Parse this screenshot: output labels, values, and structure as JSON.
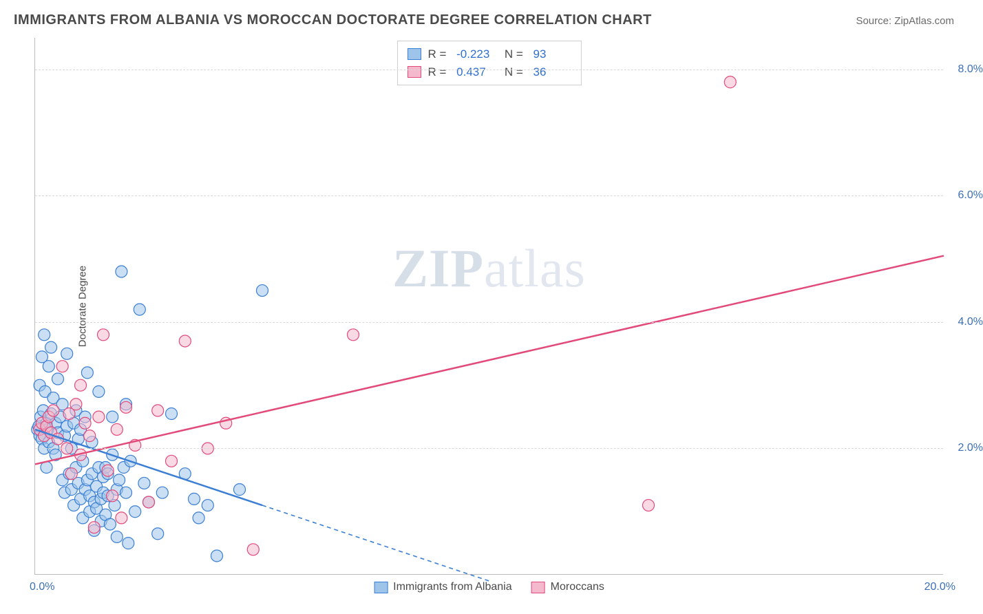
{
  "header": {
    "title": "IMMIGRANTS FROM ALBANIA VS MOROCCAN DOCTORATE DEGREE CORRELATION CHART",
    "source": "Source: ZipAtlas.com"
  },
  "watermark": {
    "zip": "ZIP",
    "atlas": "atlas"
  },
  "chart": {
    "type": "scatter",
    "ylabel": "Doctorate Degree",
    "xlim": [
      0,
      20
    ],
    "ylim": [
      0,
      8.5
    ],
    "xticks": [
      {
        "value": 0,
        "label": "0.0%"
      },
      {
        "value": 20,
        "label": "20.0%"
      }
    ],
    "yticks": [
      {
        "value": 2,
        "label": "2.0%"
      },
      {
        "value": 4,
        "label": "4.0%"
      },
      {
        "value": 6,
        "label": "6.0%"
      },
      {
        "value": 8,
        "label": "8.0%"
      }
    ],
    "grid_color": "#d8d8d8",
    "axis_color": "#bcbcbc",
    "background_color": "#ffffff",
    "marker_radius": 8.5,
    "marker_opacity": 0.55,
    "series": [
      {
        "name": "Immigrants from Albania",
        "color_stroke": "#3b7fd4",
        "color_fill": "#9fc4ea",
        "R": "-0.223",
        "N": "93",
        "trend": {
          "slope": -0.24,
          "intercept": 2.3,
          "solid_until_x": 5.0,
          "dash_until_x": 10.0
        },
        "points": [
          [
            0.05,
            2.3
          ],
          [
            0.08,
            2.35
          ],
          [
            0.1,
            3.0
          ],
          [
            0.1,
            2.2
          ],
          [
            0.12,
            2.5
          ],
          [
            0.15,
            2.15
          ],
          [
            0.15,
            3.45
          ],
          [
            0.18,
            2.6
          ],
          [
            0.2,
            3.8
          ],
          [
            0.2,
            2.0
          ],
          [
            0.22,
            2.9
          ],
          [
            0.25,
            2.4
          ],
          [
            0.25,
            1.7
          ],
          [
            0.28,
            2.3
          ],
          [
            0.3,
            3.3
          ],
          [
            0.3,
            2.1
          ],
          [
            0.35,
            2.55
          ],
          [
            0.35,
            3.6
          ],
          [
            0.4,
            2.0
          ],
          [
            0.4,
            2.8
          ],
          [
            0.45,
            1.9
          ],
          [
            0.45,
            2.4
          ],
          [
            0.5,
            2.25
          ],
          [
            0.5,
            3.1
          ],
          [
            0.55,
            2.5
          ],
          [
            0.6,
            1.5
          ],
          [
            0.6,
            2.7
          ],
          [
            0.65,
            1.3
          ],
          [
            0.65,
            2.2
          ],
          [
            0.7,
            2.35
          ],
          [
            0.7,
            3.5
          ],
          [
            0.75,
            1.6
          ],
          [
            0.8,
            1.35
          ],
          [
            0.8,
            2.0
          ],
          [
            0.85,
            2.4
          ],
          [
            0.85,
            1.1
          ],
          [
            0.9,
            2.6
          ],
          [
            0.9,
            1.7
          ],
          [
            0.95,
            1.45
          ],
          [
            0.95,
            2.15
          ],
          [
            1.0,
            2.3
          ],
          [
            1.0,
            1.2
          ],
          [
            1.05,
            0.9
          ],
          [
            1.05,
            1.8
          ],
          [
            1.1,
            1.35
          ],
          [
            1.1,
            2.5
          ],
          [
            1.15,
            1.5
          ],
          [
            1.15,
            3.2
          ],
          [
            1.2,
            1.0
          ],
          [
            1.2,
            1.25
          ],
          [
            1.25,
            1.6
          ],
          [
            1.25,
            2.1
          ],
          [
            1.3,
            1.15
          ],
          [
            1.3,
            0.7
          ],
          [
            1.35,
            1.4
          ],
          [
            1.35,
            1.05
          ],
          [
            1.4,
            1.7
          ],
          [
            1.4,
            2.9
          ],
          [
            1.45,
            1.2
          ],
          [
            1.45,
            0.85
          ],
          [
            1.5,
            1.3
          ],
          [
            1.5,
            1.55
          ],
          [
            1.55,
            1.7
          ],
          [
            1.55,
            0.95
          ],
          [
            1.6,
            1.25
          ],
          [
            1.6,
            1.6
          ],
          [
            1.65,
            0.8
          ],
          [
            1.7,
            1.9
          ],
          [
            1.7,
            2.5
          ],
          [
            1.75,
            1.1
          ],
          [
            1.8,
            1.35
          ],
          [
            1.8,
            0.6
          ],
          [
            1.85,
            1.5
          ],
          [
            1.9,
            4.8
          ],
          [
            1.95,
            1.7
          ],
          [
            2.0,
            2.7
          ],
          [
            2.0,
            1.3
          ],
          [
            2.05,
            0.5
          ],
          [
            2.1,
            1.8
          ],
          [
            2.2,
            1.0
          ],
          [
            2.3,
            4.2
          ],
          [
            2.4,
            1.45
          ],
          [
            2.5,
            1.15
          ],
          [
            2.7,
            0.65
          ],
          [
            2.8,
            1.3
          ],
          [
            3.0,
            2.55
          ],
          [
            3.3,
            1.6
          ],
          [
            3.5,
            1.2
          ],
          [
            3.6,
            0.9
          ],
          [
            3.8,
            1.1
          ],
          [
            4.0,
            0.3
          ],
          [
            4.5,
            1.35
          ],
          [
            5.0,
            4.5
          ]
        ]
      },
      {
        "name": "Moroccans",
        "color_stroke": "#e24a7a",
        "color_fill": "#f4b9cc",
        "R": "0.437",
        "N": "36",
        "trend": {
          "slope": 0.165,
          "intercept": 1.75,
          "solid_until_x": 20.0,
          "dash_until_x": 20.0
        },
        "points": [
          [
            0.1,
            2.3
          ],
          [
            0.15,
            2.4
          ],
          [
            0.2,
            2.2
          ],
          [
            0.25,
            2.35
          ],
          [
            0.3,
            2.5
          ],
          [
            0.35,
            2.25
          ],
          [
            0.4,
            2.6
          ],
          [
            0.5,
            2.15
          ],
          [
            0.6,
            3.3
          ],
          [
            0.7,
            2.0
          ],
          [
            0.75,
            2.55
          ],
          [
            0.8,
            1.6
          ],
          [
            0.9,
            2.7
          ],
          [
            1.0,
            3.0
          ],
          [
            1.0,
            1.9
          ],
          [
            1.1,
            2.4
          ],
          [
            1.2,
            2.2
          ],
          [
            1.3,
            0.75
          ],
          [
            1.4,
            2.5
          ],
          [
            1.5,
            3.8
          ],
          [
            1.6,
            1.65
          ],
          [
            1.7,
            1.25
          ],
          [
            1.8,
            2.3
          ],
          [
            1.9,
            0.9
          ],
          [
            2.0,
            2.65
          ],
          [
            2.2,
            2.05
          ],
          [
            2.5,
            1.15
          ],
          [
            2.7,
            2.6
          ],
          [
            3.0,
            1.8
          ],
          [
            3.3,
            3.7
          ],
          [
            3.8,
            2.0
          ],
          [
            4.2,
            2.4
          ],
          [
            4.8,
            0.4
          ],
          [
            7.0,
            3.8
          ],
          [
            13.5,
            1.1
          ],
          [
            15.3,
            7.8
          ]
        ]
      }
    ],
    "legend_bottom": [
      {
        "label": "Immigrants from Albania",
        "fill": "#9fc4ea",
        "stroke": "#3b7fd4"
      },
      {
        "label": "Moroccans",
        "fill": "#f4b9cc",
        "stroke": "#e24a7a"
      }
    ]
  }
}
